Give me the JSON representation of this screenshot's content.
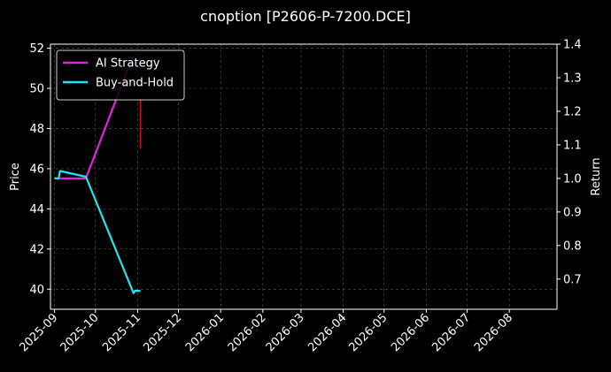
{
  "chart_data": {
    "type": "line",
    "title": "cnoption [P2606-P-7200.DCE]",
    "xlabel": "",
    "ylabel_left": "Price",
    "ylabel_right": "Return",
    "x_ticks": [
      "2025-09",
      "2025-10",
      "2025-11",
      "2025-12",
      "2026-01",
      "2026-02",
      "2026-03",
      "2026-04",
      "2026-05",
      "2026-06",
      "2026-07",
      "2026-08"
    ],
    "x_range": [
      "2025-08-29",
      "2026-09-05"
    ],
    "y_left_range": [
      39.0,
      52.2
    ],
    "y_left_ticks": [
      40,
      42,
      44,
      46,
      48,
      50,
      52
    ],
    "y_right_range": [
      0.61,
      1.4
    ],
    "y_right_ticks": [
      0.7,
      0.8,
      0.9,
      1.0,
      1.1,
      1.2,
      1.3,
      1.4
    ],
    "grid": true,
    "legend_position": "top-left",
    "series": [
      {
        "name": "AI Strategy",
        "axis": "right",
        "color": "#e61ee6",
        "points": [
          [
            "2025-09-01",
            1.0
          ],
          [
            "2025-09-05",
            1.0
          ],
          [
            "2025-09-24",
            1.0
          ],
          [
            "2025-10-28",
            1.36
          ]
        ]
      },
      {
        "name": "Buy-and-Hold",
        "axis": "right",
        "color": "#1ee6f0",
        "points": [
          [
            "2025-09-01",
            1.0
          ],
          [
            "2025-09-04",
            1.0
          ],
          [
            "2025-09-05",
            1.022
          ],
          [
            "2025-09-24",
            1.005
          ],
          [
            "2025-10-29",
            0.658
          ],
          [
            "2025-10-30",
            0.665
          ],
          [
            "2025-11-03",
            0.665
          ]
        ]
      }
    ],
    "price_marks": [
      {
        "date": "2025-11-03",
        "low": 47.0,
        "high": 49.5,
        "color": "#d01010"
      }
    ]
  }
}
